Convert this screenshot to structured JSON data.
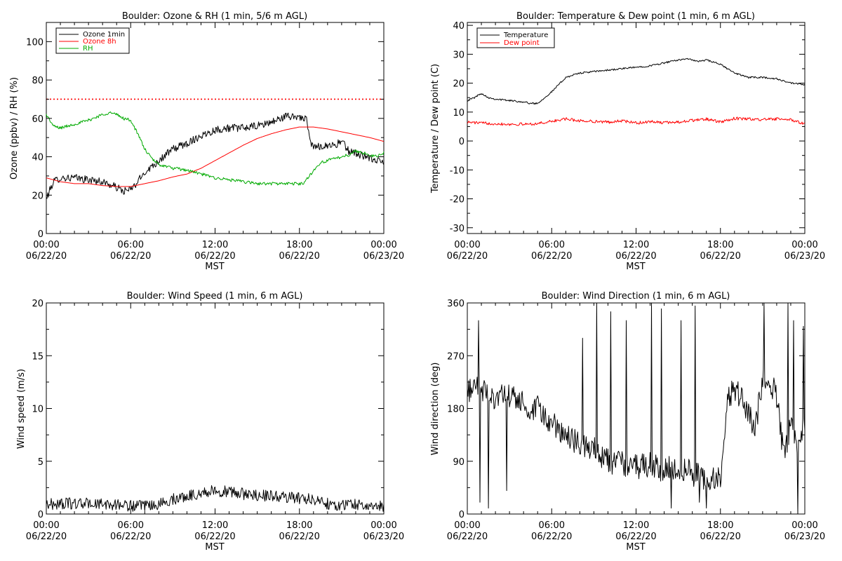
{
  "chart_data": [
    {
      "id": "ozone",
      "type": "line",
      "title": "Boulder: Ozone & RH (1 min, 5/6 m AGL)",
      "ylabel": "Ozone (ppbv) / RH (%)",
      "xlabel": "MST",
      "x_ticks": [
        [
          "00:00",
          "06/22/20"
        ],
        [
          "06:00",
          "06/22/20"
        ],
        [
          "12:00",
          "06/22/20"
        ],
        [
          "18:00",
          "06/22/20"
        ],
        [
          "00:00",
          "06/23/20"
        ]
      ],
      "xlim": [
        0,
        24
      ],
      "ylim": [
        0,
        110
      ],
      "y_ticks": [
        0,
        20,
        40,
        60,
        80,
        100
      ],
      "legend": {
        "placement": "top-left"
      },
      "reference_line": {
        "y": 70,
        "color": "#ff0000",
        "style": "dotted"
      },
      "series": [
        {
          "name": "Ozone 1min",
          "color": "#000000",
          "noise": 2,
          "x": [
            0,
            0.5,
            1,
            2,
            3,
            4,
            5,
            5.5,
            6,
            6.3,
            7,
            8,
            9,
            10,
            11,
            12,
            13,
            14,
            15,
            16,
            17,
            18,
            18.5,
            18.8,
            19,
            20,
            20.5,
            21,
            21.5,
            22,
            23,
            24
          ],
          "y": [
            18,
            27,
            29,
            29,
            28,
            27,
            24,
            22,
            23,
            25,
            32,
            38,
            44,
            47,
            51,
            54,
            55,
            55,
            56,
            58,
            61,
            61,
            59,
            47,
            45,
            46,
            46,
            48,
            43,
            42,
            39,
            37
          ]
        },
        {
          "name": "Ozone 8h",
          "color": "#ff0000",
          "noise": 0,
          "x": [
            0,
            1,
            2,
            3,
            4,
            5,
            6,
            7,
            8,
            9,
            10,
            11,
            12,
            13,
            14,
            15,
            16,
            17,
            18,
            19,
            20,
            21,
            22,
            23,
            24
          ],
          "y": [
            29,
            27,
            26,
            26,
            25,
            24.5,
            24.5,
            26,
            27.5,
            29.5,
            31,
            34,
            38,
            42,
            46,
            49.5,
            52,
            54,
            55.5,
            55.5,
            54.5,
            53,
            51.5,
            50,
            48
          ]
        },
        {
          "name": "RH",
          "color": "#00aa00",
          "noise": 0.8,
          "x": [
            0,
            0.5,
            1,
            2,
            3,
            4,
            4.5,
            5,
            5.5,
            6,
            6.5,
            7,
            7.5,
            8,
            9,
            10,
            11,
            12,
            13,
            14,
            15,
            16,
            17,
            18,
            18.3,
            18.8,
            19.5,
            20,
            21,
            21.5,
            22,
            22.5,
            23,
            23.5,
            24
          ],
          "y": [
            62,
            56,
            55,
            57,
            59,
            62,
            63,
            62,
            60,
            59,
            52,
            44,
            39,
            36,
            34,
            33,
            31,
            29,
            28,
            27,
            26,
            26,
            26,
            26,
            26,
            31,
            37,
            38,
            40,
            41,
            43,
            42,
            41,
            40,
            42
          ]
        }
      ]
    },
    {
      "id": "temp",
      "type": "line",
      "title": "Boulder: Temperature & Dew point (1 min, 6 m AGL)",
      "ylabel": "Temperature / Dew point (C)",
      "xlabel": "MST",
      "x_ticks": [
        [
          "00:00",
          "06/22/20"
        ],
        [
          "06:00",
          "06/22/20"
        ],
        [
          "12:00",
          "06/22/20"
        ],
        [
          "18:00",
          "06/22/20"
        ],
        [
          "00:00",
          "06/23/20"
        ]
      ],
      "xlim": [
        0,
        24
      ],
      "ylim": [
        -32,
        41
      ],
      "y_ticks": [
        -30,
        -20,
        -10,
        0,
        10,
        20,
        30,
        40
      ],
      "legend": {
        "placement": "top-left"
      },
      "series": [
        {
          "name": "Temperature",
          "color": "#000000",
          "noise": 0.3,
          "x": [
            0,
            0.5,
            1,
            1.5,
            2,
            3,
            4,
            4.5,
            5,
            5.5,
            6,
            7,
            8,
            9,
            10,
            11,
            12,
            13,
            14,
            15,
            15.5,
            16,
            16.5,
            17,
            18,
            19,
            20,
            21,
            22,
            23,
            24
          ],
          "y": [
            14,
            15,
            16.5,
            15,
            14.5,
            14,
            13.5,
            13,
            13,
            15,
            17,
            22,
            23.5,
            24,
            24.5,
            25,
            25.5,
            26,
            27,
            28,
            28.5,
            28,
            27.5,
            28,
            26.5,
            23.5,
            22,
            22,
            21.5,
            20,
            19.5
          ]
        },
        {
          "name": "Dew point",
          "color": "#ff0000",
          "noise": 0.5,
          "x": [
            0,
            1,
            2,
            3,
            4,
            5,
            6,
            7,
            8,
            9,
            10,
            11,
            12,
            13,
            14,
            15,
            16,
            17,
            18,
            19,
            20,
            21,
            22,
            23,
            24
          ],
          "y": [
            6.5,
            6.2,
            6,
            5.8,
            5.8,
            6,
            6.8,
            7.6,
            7,
            6.8,
            6.5,
            7,
            6.2,
            6.7,
            6.3,
            6.6,
            7.1,
            7.6,
            6.5,
            7.8,
            7.6,
            7.4,
            7.6,
            7.3,
            6
          ]
        }
      ]
    },
    {
      "id": "wspd",
      "type": "line",
      "title": "Boulder: Wind Speed (1 min, 6 m AGL)",
      "ylabel": "Wind speed (m/s)",
      "xlabel": "MST",
      "x_ticks": [
        [
          "00:00",
          "06/22/20"
        ],
        [
          "06:00",
          "06/22/20"
        ],
        [
          "12:00",
          "06/22/20"
        ],
        [
          "18:00",
          "06/22/20"
        ],
        [
          "00:00",
          "06/23/20"
        ]
      ],
      "xlim": [
        0,
        24
      ],
      "ylim": [
        0,
        20
      ],
      "y_ticks": [
        0,
        5,
        10,
        15,
        20
      ],
      "series": [
        {
          "color": "#000000",
          "noise": 0.55,
          "min": 0,
          "x": [
            0,
            0.5,
            1,
            2,
            3,
            4,
            5,
            6,
            7,
            8,
            9,
            10,
            11,
            12,
            13,
            14,
            15,
            16,
            17,
            18,
            19,
            20,
            21,
            21.5,
            22,
            23,
            24
          ],
          "y": [
            1,
            0.9,
            1,
            1,
            1,
            0.9,
            0.9,
            0.8,
            0.7,
            0.9,
            1.4,
            1.7,
            2,
            2.2,
            2.1,
            1.9,
            1.8,
            1.7,
            1.6,
            1.5,
            1.4,
            1,
            0.8,
            0.9,
            1,
            0.6,
            0.8
          ]
        }
      ]
    },
    {
      "id": "wdir",
      "type": "line",
      "title": "Boulder: Wind Direction (1 min, 6 m AGL)",
      "ylabel": "Wind direction (deg)",
      "xlabel": "MST",
      "x_ticks": [
        [
          "00:00",
          "06/22/20"
        ],
        [
          "06:00",
          "06/22/20"
        ],
        [
          "12:00",
          "06/22/20"
        ],
        [
          "18:00",
          "06/22/20"
        ],
        [
          "00:00",
          "06/23/20"
        ]
      ],
      "xlim": [
        0,
        24
      ],
      "ylim": [
        0,
        360
      ],
      "y_ticks": [
        0,
        90,
        180,
        270,
        360
      ],
      "series": [
        {
          "color": "#000000",
          "noise": 22,
          "min": 0,
          "max": 360,
          "spikes": [
            [
              0.8,
              330
            ],
            [
              0.9,
              20
            ],
            [
              1.5,
              10
            ],
            [
              2.8,
              40
            ],
            [
              8.2,
              300
            ],
            [
              9.2,
              360
            ],
            [
              10.2,
              345
            ],
            [
              11.3,
              330
            ],
            [
              13.1,
              360
            ],
            [
              13.8,
              350
            ],
            [
              14.5,
              10
            ],
            [
              15.2,
              330
            ],
            [
              16.2,
              355
            ],
            [
              16.5,
              20
            ],
            [
              17,
              10
            ],
            [
              21.1,
              360
            ],
            [
              22.8,
              360
            ],
            [
              23.2,
              330
            ],
            [
              23.5,
              0
            ],
            [
              23.9,
              320
            ]
          ],
          "x": [
            0,
            0.5,
            1,
            2,
            3,
            4,
            4.5,
            5,
            5.5,
            6,
            6.5,
            7,
            8,
            9,
            10,
            11,
            12,
            13,
            14,
            15,
            16,
            17,
            18,
            18.5,
            19,
            19.5,
            20,
            20.5,
            21,
            21.5,
            22,
            22.5,
            23,
            23.5,
            24
          ],
          "y": [
            200,
            230,
            210,
            200,
            200,
            190,
            165,
            180,
            165,
            150,
            150,
            130,
            120,
            110,
            90,
            85,
            80,
            85,
            75,
            80,
            70,
            60,
            60,
            200,
            210,
            200,
            170,
            150,
            230,
            230,
            200,
            100,
            150,
            120,
            150
          ]
        }
      ]
    }
  ]
}
